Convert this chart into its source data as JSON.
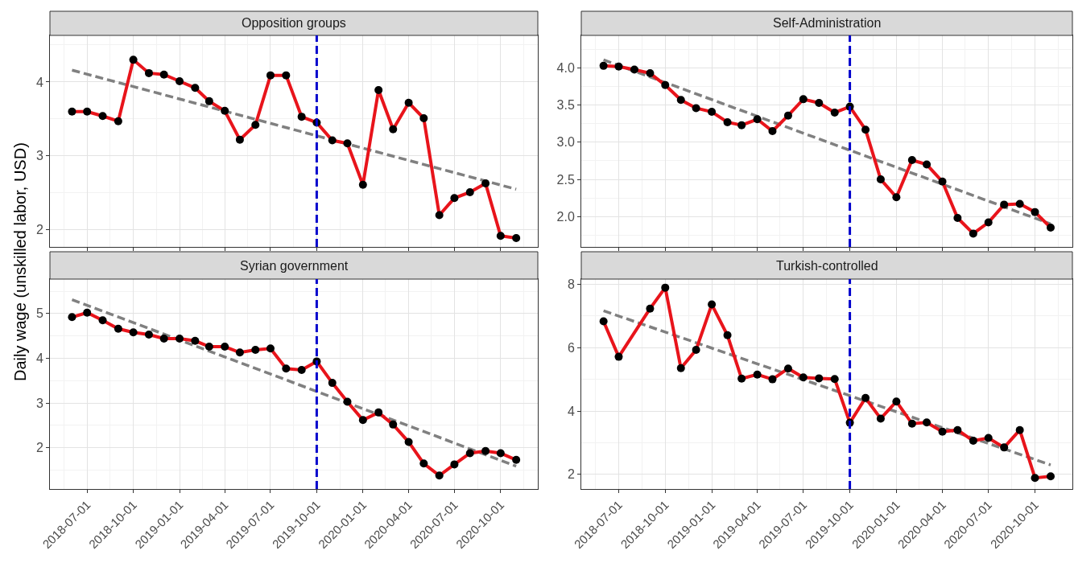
{
  "chart_data": [
    {
      "type": "line",
      "title": "Opposition groups",
      "ylabel": "Daily wage (unskilled labor, USD)",
      "x": [
        "2018-06-01",
        "2018-07-01",
        "2018-08-01",
        "2018-09-01",
        "2018-10-01",
        "2018-11-01",
        "2018-12-01",
        "2019-01-01",
        "2019-02-01",
        "2019-03-01",
        "2019-04-01",
        "2019-05-01",
        "2019-06-01",
        "2019-07-01",
        "2019-08-01",
        "2019-09-01",
        "2019-10-01",
        "2019-11-01",
        "2019-12-01",
        "2020-01-01",
        "2020-02-01",
        "2020-03-01",
        "2020-04-01",
        "2020-05-01",
        "2020-06-01",
        "2020-07-01",
        "2020-08-01",
        "2020-09-01",
        "2020-10-01",
        "2020-11-01"
      ],
      "series": [
        {
          "color": "#e8141b",
          "marker": "circle",
          "values": [
            3.6,
            3.6,
            3.54,
            3.47,
            4.3,
            4.12,
            4.1,
            4.01,
            3.92,
            3.74,
            3.61,
            3.22,
            3.42,
            4.09,
            4.09,
            3.53,
            3.45,
            3.21,
            3.17,
            2.61,
            3.89,
            3.36,
            3.72,
            3.51,
            2.2,
            2.43,
            2.51,
            2.63,
            1.92,
            1.89
          ]
        },
        {
          "type": "line",
          "color": "#808080",
          "line_style": "dashed",
          "marker": "none",
          "x": [
            "2018-06-01",
            "2020-11-01"
          ],
          "values": [
            4.16,
            2.55
          ]
        }
      ],
      "ref_lines": [
        {
          "axis": "x",
          "value": "2019-10-01",
          "color": "#0000cc",
          "line_style": "dashed"
        }
      ],
      "xlim": [
        "2018-04-18",
        "2020-12-14"
      ],
      "ylim": [
        1.77,
        4.63
      ],
      "yticks": [
        2,
        3,
        4
      ],
      "xticks": [
        "2018-07-01",
        "2018-10-01",
        "2019-01-01",
        "2019-04-01",
        "2019-07-01",
        "2019-10-01",
        "2020-01-01",
        "2020-04-01",
        "2020-07-01",
        "2020-10-01"
      ],
      "tick_labels": "y",
      "grid": true
    },
    {
      "type": "line",
      "title": "Self-Administration",
      "x": [
        "2018-06-01",
        "2018-07-01",
        "2018-08-01",
        "2018-09-01",
        "2018-10-01",
        "2018-11-01",
        "2018-12-01",
        "2019-01-01",
        "2019-02-01",
        "2019-03-01",
        "2019-04-01",
        "2019-05-01",
        "2019-06-01",
        "2019-07-01",
        "2019-08-01",
        "2019-09-01",
        "2019-10-01",
        "2019-11-01",
        "2019-12-01",
        "2020-01-01",
        "2020-02-01",
        "2020-03-01",
        "2020-04-01",
        "2020-05-01",
        "2020-06-01",
        "2020-07-01",
        "2020-08-01",
        "2020-09-01",
        "2020-10-01",
        "2020-11-01"
      ],
      "series": [
        {
          "color": "#e8141b",
          "marker": "circle",
          "values": [
            4.03,
            4.02,
            3.98,
            3.93,
            3.77,
            3.57,
            3.46,
            3.41,
            3.27,
            3.23,
            3.31,
            3.15,
            3.36,
            3.58,
            3.53,
            3.4,
            3.48,
            3.17,
            2.5,
            2.26,
            2.76,
            2.7,
            2.47,
            1.98,
            1.77,
            1.92,
            2.16,
            2.17,
            2.06,
            1.85
          ]
        },
        {
          "type": "line",
          "color": "#808080",
          "line_style": "dashed",
          "marker": "none",
          "x": [
            "2018-06-01",
            "2020-11-01"
          ],
          "values": [
            4.11,
            1.9
          ]
        }
      ],
      "ref_lines": [
        {
          "axis": "x",
          "value": "2019-10-01",
          "color": "#0000cc",
          "line_style": "dashed"
        }
      ],
      "xlim": [
        "2018-04-18",
        "2020-12-14"
      ],
      "ylim": [
        1.59,
        4.44
      ],
      "yticks": [
        {
          "value": 2,
          "label": "2.0"
        },
        {
          "value": 2.5,
          "label": "2.5"
        },
        {
          "value": 3,
          "label": "3.0"
        },
        {
          "value": 3.5,
          "label": "3.5"
        },
        {
          "value": 4,
          "label": "4.0"
        }
      ],
      "xticks": [
        "2018-07-01",
        "2018-10-01",
        "2019-01-01",
        "2019-04-01",
        "2019-07-01",
        "2019-10-01",
        "2020-01-01",
        "2020-04-01",
        "2020-07-01",
        "2020-10-01"
      ],
      "tick_labels": "y",
      "grid": true
    },
    {
      "type": "line",
      "title": "Syrian government",
      "x": [
        "2018-06-01",
        "2018-07-01",
        "2018-08-01",
        "2018-09-01",
        "2018-10-01",
        "2018-11-01",
        "2018-12-01",
        "2019-01-01",
        "2019-02-01",
        "2019-03-01",
        "2019-04-01",
        "2019-05-01",
        "2019-06-01",
        "2019-07-01",
        "2019-08-01",
        "2019-09-01",
        "2019-10-01",
        "2019-11-01",
        "2019-12-01",
        "2020-01-01",
        "2020-02-01",
        "2020-03-01",
        "2020-04-01",
        "2020-05-01",
        "2020-06-01",
        "2020-07-01",
        "2020-08-01",
        "2020-09-01",
        "2020-10-01",
        "2020-11-01"
      ],
      "series": [
        {
          "color": "#e8141b",
          "marker": "circle",
          "values": [
            4.92,
            5.02,
            4.85,
            4.66,
            4.58,
            4.53,
            4.44,
            4.44,
            4.39,
            4.26,
            4.26,
            4.13,
            4.19,
            4.22,
            3.77,
            3.74,
            3.93,
            3.45,
            3.03,
            2.62,
            2.79,
            2.52,
            2.13,
            1.65,
            1.38,
            1.63,
            1.88,
            1.93,
            1.88,
            1.73
          ]
        },
        {
          "type": "line",
          "color": "#808080",
          "line_style": "dashed",
          "marker": "none",
          "x": [
            "2018-06-01",
            "2020-11-01"
          ],
          "values": [
            5.31,
            1.59
          ]
        }
      ],
      "ref_lines": [
        {
          "axis": "x",
          "value": "2019-10-01",
          "color": "#0000cc",
          "line_style": "dashed"
        }
      ],
      "xlim": [
        "2018-04-18",
        "2020-12-14"
      ],
      "ylim": [
        1.08,
        5.77
      ],
      "yticks": [
        2,
        3,
        4,
        5
      ],
      "xticks": [
        "2018-07-01",
        "2018-10-01",
        "2019-01-01",
        "2019-04-01",
        "2019-07-01",
        "2019-10-01",
        "2020-01-01",
        "2020-04-01",
        "2020-07-01",
        "2020-10-01"
      ],
      "grid": true
    },
    {
      "type": "line",
      "title": "Turkish-controlled",
      "x": [
        "2018-06-01",
        "2018-07-01",
        "2018-09-01",
        "2018-10-01",
        "2018-11-01",
        "2018-12-01",
        "2019-01-01",
        "2019-02-01",
        "2019-03-01",
        "2019-04-01",
        "2019-05-01",
        "2019-06-01",
        "2019-07-01",
        "2019-08-01",
        "2019-09-01",
        "2019-10-01",
        "2019-11-01",
        "2019-12-01",
        "2020-01-01",
        "2020-02-01",
        "2020-03-01",
        "2020-04-01",
        "2020-05-01",
        "2020-06-01",
        "2020-07-01",
        "2020-08-01",
        "2020-09-01",
        "2020-10-01",
        "2020-11-01"
      ],
      "series": [
        {
          "color": "#e8141b",
          "marker": "circle",
          "values": [
            6.83,
            5.71,
            7.23,
            7.89,
            5.35,
            5.93,
            7.36,
            6.39,
            5.02,
            5.15,
            5.0,
            5.34,
            5.06,
            5.03,
            5.01,
            3.63,
            4.41,
            3.76,
            4.3,
            3.6,
            3.64,
            3.35,
            3.4,
            3.06,
            3.15,
            2.85,
            3.4,
            1.89,
            1.94
          ]
        },
        {
          "type": "line",
          "color": "#808080",
          "line_style": "dashed",
          "marker": "none",
          "x": [
            "2018-06-01",
            "2020-11-01"
          ],
          "values": [
            7.16,
            2.3
          ]
        }
      ],
      "ref_lines": [
        {
          "axis": "x",
          "value": "2019-10-01",
          "color": "#0000cc",
          "line_style": "dashed"
        }
      ],
      "xlim": [
        "2018-04-18",
        "2020-12-14"
      ],
      "ylim": [
        1.54,
        8.16
      ],
      "yticks": [
        2,
        4,
        6,
        8
      ],
      "xticks": [
        "2018-07-01",
        "2018-10-01",
        "2019-01-01",
        "2019-04-01",
        "2019-07-01",
        "2019-10-01",
        "2020-01-01",
        "2020-04-01",
        "2020-07-01",
        "2020-10-01"
      ],
      "grid": true
    }
  ]
}
